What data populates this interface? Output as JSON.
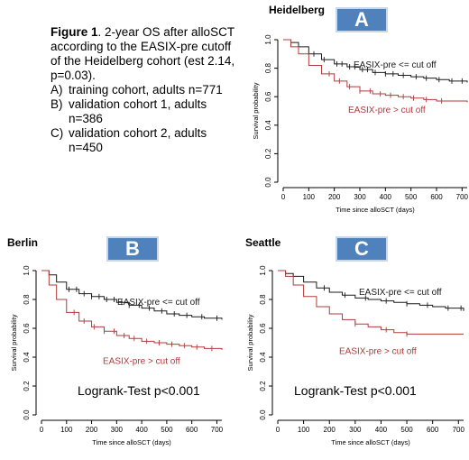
{
  "caption": {
    "figure_label": "Figure 1",
    "text": ". 2-year OS after alloSCT according to the EASIX-pre cutoff of the Heidelberg cohort (est 2.14, p=0.03).",
    "items": [
      {
        "marker": "A)",
        "text": "training cohort, adults n=771"
      },
      {
        "marker": "B)",
        "text": "validation cohort 1, adults n=386"
      },
      {
        "marker": "C)",
        "text": "validation cohort 2, adults n=450"
      }
    ]
  },
  "colors": {
    "low": "#1a1a1a",
    "high": "#b03a3a",
    "badge": "#4f81bd"
  },
  "chart_data": [
    {
      "type": "line",
      "panel_title": "Heidelberg",
      "badge": "A",
      "xlabel": "Time since alloSCT (days)",
      "ylabel": "Survival probability",
      "xlim": [
        0,
        720
      ],
      "ylim": [
        0,
        1
      ],
      "xticks": [
        0,
        100,
        200,
        300,
        400,
        500,
        600,
        700
      ],
      "yticks": [
        0.0,
        0.2,
        0.4,
        0.6,
        0.8,
        1.0
      ],
      "ytick_labels": [
        "0.0",
        "0.2",
        "0.4",
        "0.6",
        "0.8",
        "1.0"
      ],
      "annotation": "",
      "series": [
        {
          "name": "EASIX-pre <= cut off",
          "color": "#1a1a1a",
          "x": [
            0,
            30,
            60,
            100,
            150,
            200,
            250,
            300,
            350,
            400,
            450,
            500,
            550,
            600,
            650,
            720
          ],
          "y": [
            1.0,
            0.98,
            0.95,
            0.9,
            0.86,
            0.83,
            0.81,
            0.79,
            0.77,
            0.76,
            0.75,
            0.74,
            0.73,
            0.72,
            0.71,
            0.7
          ],
          "censor_x": [
            120,
            160,
            210,
            230,
            260,
            280,
            310,
            330,
            360,
            400,
            430,
            470,
            520,
            560,
            610,
            660,
            700
          ]
        },
        {
          "name": "EASIX-pre > cut off",
          "color": "#b03a3a",
          "x": [
            0,
            30,
            60,
            100,
            150,
            200,
            250,
            300,
            350,
            400,
            450,
            500,
            550,
            600,
            650,
            720
          ],
          "y": [
            1.0,
            0.95,
            0.9,
            0.82,
            0.76,
            0.71,
            0.67,
            0.64,
            0.62,
            0.61,
            0.6,
            0.59,
            0.58,
            0.57,
            0.57,
            0.56
          ],
          "censor_x": [
            180,
            220,
            260,
            300,
            340,
            380,
            420,
            470,
            510,
            560,
            620
          ]
        }
      ],
      "labels": [
        {
          "text": "EASIX-pre <= cut off",
          "series": 0
        },
        {
          "text": "EASIX-pre > cut off",
          "series": 1
        }
      ]
    },
    {
      "type": "line",
      "panel_title": "Berlin",
      "badge": "B",
      "xlabel": "Time since alloSCT (days)",
      "ylabel": "Survival probability",
      "xlim": [
        0,
        720
      ],
      "ylim": [
        0,
        1
      ],
      "xticks": [
        0,
        100,
        200,
        300,
        400,
        500,
        600,
        700
      ],
      "yticks": [
        0.0,
        0.2,
        0.4,
        0.6,
        0.8,
        1.0
      ],
      "ytick_labels": [
        "0.0",
        "0.2",
        "0.4",
        "0.6",
        "0.8",
        "1.0"
      ],
      "annotation": "Logrank-Test p<0.001",
      "series": [
        {
          "name": "EASIX-pre <= cut off",
          "color": "#1a1a1a",
          "x": [
            0,
            30,
            60,
            100,
            150,
            200,
            250,
            300,
            350,
            400,
            450,
            500,
            550,
            600,
            650,
            720
          ],
          "y": [
            1.0,
            0.97,
            0.92,
            0.87,
            0.84,
            0.82,
            0.8,
            0.78,
            0.76,
            0.74,
            0.72,
            0.7,
            0.69,
            0.68,
            0.67,
            0.66
          ],
          "censor_x": [
            110,
            140,
            170,
            200,
            230,
            260,
            290,
            320,
            350,
            390,
            430,
            480,
            530,
            580,
            640,
            700
          ]
        },
        {
          "name": "EASIX-pre > cut off",
          "color": "#b03a3a",
          "x": [
            0,
            30,
            60,
            100,
            150,
            200,
            250,
            300,
            350,
            400,
            450,
            500,
            550,
            600,
            650,
            720
          ],
          "y": [
            1.0,
            0.9,
            0.8,
            0.71,
            0.65,
            0.61,
            0.58,
            0.55,
            0.53,
            0.51,
            0.5,
            0.49,
            0.48,
            0.47,
            0.46,
            0.45
          ],
          "censor_x": [
            130,
            170,
            210,
            250,
            290,
            330,
            370,
            420,
            470,
            520,
            570,
            620,
            680
          ]
        }
      ],
      "labels": [
        {
          "text": "EASIX-pre <= cut off",
          "series": 0
        },
        {
          "text": "EASIX-pre > cut off",
          "series": 1
        }
      ]
    },
    {
      "type": "line",
      "panel_title": "Seattle",
      "badge": "C",
      "xlabel": "Time since alloSCT (days)",
      "ylabel": "Survival probability",
      "xlim": [
        0,
        720
      ],
      "ylim": [
        0,
        1
      ],
      "xticks": [
        0,
        100,
        200,
        300,
        400,
        500,
        600,
        700
      ],
      "yticks": [
        0.0,
        0.2,
        0.4,
        0.6,
        0.8,
        1.0
      ],
      "ytick_labels": [
        "0.0",
        "0.2",
        "0.4",
        "0.6",
        "0.8",
        "1.0"
      ],
      "annotation": "Logrank-Test p<0.001",
      "series": [
        {
          "name": "EASIX-pre <= cut off",
          "color": "#1a1a1a",
          "x": [
            0,
            30,
            60,
            100,
            150,
            200,
            250,
            300,
            350,
            400,
            450,
            500,
            550,
            600,
            650,
            720
          ],
          "y": [
            1.0,
            0.98,
            0.96,
            0.92,
            0.88,
            0.85,
            0.83,
            0.81,
            0.8,
            0.79,
            0.78,
            0.77,
            0.76,
            0.75,
            0.74,
            0.72
          ],
          "censor_x": [
            180,
            260,
            340,
            420,
            500,
            580,
            660,
            710
          ]
        },
        {
          "name": "EASIX-pre > cut off",
          "color": "#b03a3a",
          "x": [
            0,
            30,
            60,
            100,
            150,
            200,
            250,
            300,
            350,
            400,
            450,
            500,
            550,
            600,
            650,
            720
          ],
          "y": [
            1.0,
            0.96,
            0.9,
            0.82,
            0.75,
            0.7,
            0.66,
            0.63,
            0.61,
            0.59,
            0.57,
            0.56,
            0.56,
            0.56,
            0.56,
            0.56
          ],
          "censor_x": [
            300,
            420,
            500
          ]
        }
      ],
      "labels": [
        {
          "text": "EASIX-pre <= cut off",
          "series": 0
        },
        {
          "text": "EASIX-pre > cut off",
          "series": 1
        }
      ]
    }
  ]
}
